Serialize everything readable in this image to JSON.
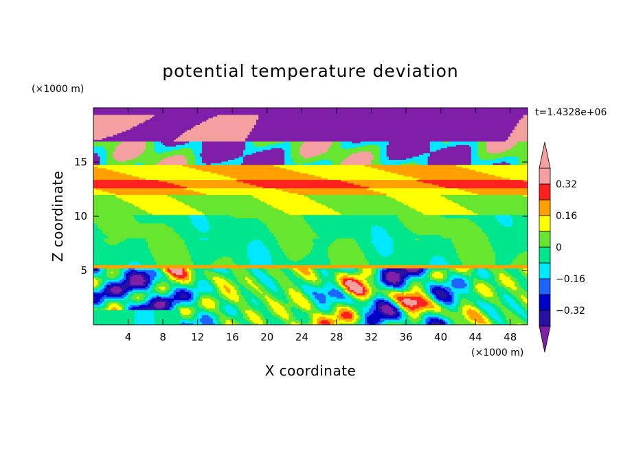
{
  "chart_data": {
    "type": "heatmap",
    "title": "potential temperature deviation",
    "time_label": "t=1.4328e+06",
    "xlabel": "X coordinate",
    "ylabel": "Z coordinate",
    "x_unit": "(×1000 m)",
    "y_unit": "(×1000 m)",
    "xlim": [
      0,
      50
    ],
    "ylim": [
      0,
      20
    ],
    "x_ticks": [
      4,
      8,
      12,
      16,
      20,
      24,
      28,
      32,
      36,
      40,
      44,
      48
    ],
    "y_ticks": [
      5,
      10,
      15
    ],
    "colorbar": {
      "levels": [
        -0.4,
        -0.32,
        -0.24,
        -0.16,
        -0.08,
        0,
        0.08,
        0.16,
        0.24,
        0.32,
        0.4
      ],
      "tick_labels": [
        "0.32",
        "0.16",
        "0",
        "−0.16",
        "−0.32"
      ],
      "tick_values": [
        0.32,
        0.16,
        0,
        -0.16,
        -0.32
      ],
      "colors": [
        "#7f1fa8",
        "#2a10a0",
        "#0000c8",
        "#1e64ff",
        "#00e8ff",
        "#00e68c",
        "#66e62e",
        "#ffff00",
        "#ffa000",
        "#ff2020",
        "#f4a0a0"
      ],
      "extend": "both"
    },
    "field_zones": [
      {
        "z_range": [
          0,
          5.3
        ],
        "pattern": "turbulent eddies, mixed -0.4 to +0.4"
      },
      {
        "z_range": [
          5.3,
          5.6
        ],
        "value": 0.16
      },
      {
        "z_range": [
          5.6,
          10.2
        ],
        "value": 0.0
      },
      {
        "z_range": [
          10.2,
          12
        ],
        "value": 0.08
      },
      {
        "z_range": [
          12,
          14.8
        ],
        "value": 0.16
      },
      {
        "z_range": [
          14.8,
          17
        ],
        "pattern": "mixed positive/negative"
      },
      {
        "z_range": [
          17,
          20
        ],
        "pattern": "large negative with positive clouds"
      }
    ]
  }
}
